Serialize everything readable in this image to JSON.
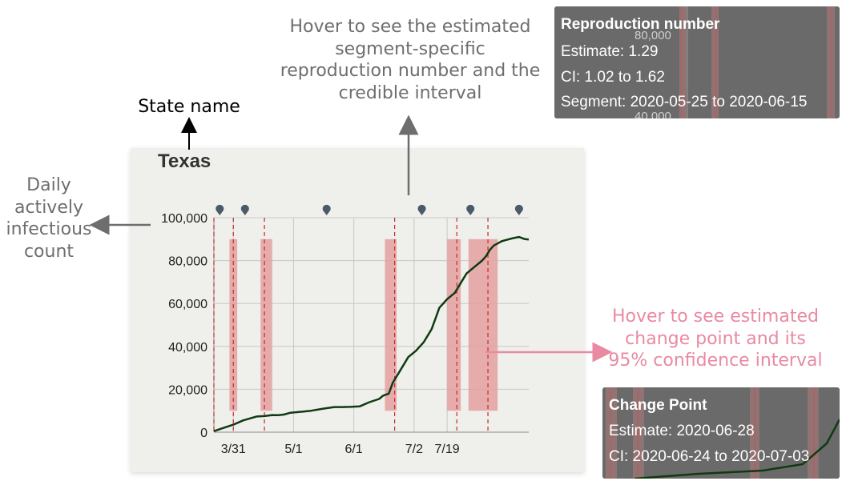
{
  "annotations": {
    "state_name": "State name",
    "daily_count": [
      "Daily",
      "actively",
      "infectious",
      "count"
    ],
    "hover_segment": [
      "Hover to see the estimated",
      "segment-specific",
      "reproduction number and the",
      "credible interval"
    ],
    "hover_change": [
      "Hover to see estimated",
      "change point and its",
      "95% confidence interval"
    ]
  },
  "colors": {
    "line": "#0f3a12",
    "band": "#e4a0a0",
    "dashed": "#c8282e",
    "marker": "#4a5a68",
    "arrow_grey": "#6e6e6e",
    "arrow_pink": "#e98aa2",
    "grid": "#c8c8c8"
  },
  "chart_data": {
    "type": "line",
    "title": "Texas",
    "xlabel": "",
    "ylabel": "",
    "ylim": [
      0,
      100000
    ],
    "x_ticks": [
      "3/31",
      "5/1",
      "6/1",
      "7/2",
      "7/19"
    ],
    "y_ticks": [
      "0",
      "20,000",
      "40,000",
      "60,000",
      "80,000",
      "100,000"
    ],
    "series": [
      {
        "x": [
          0,
          10,
          15,
          20,
          22,
          26,
          30,
          33,
          36,
          39,
          42,
          46,
          50,
          55,
          58,
          62,
          66,
          70,
          75,
          80,
          85,
          87,
          90,
          92,
          96,
          100,
          104,
          108,
          112,
          114,
          116,
          120,
          124,
          128,
          130,
          134,
          138,
          140,
          142,
          144,
          146,
          148,
          150,
          152,
          154,
          157,
          160,
          162
        ],
        "values": [
          500,
          3500,
          5500,
          6800,
          7300,
          7500,
          8000,
          7900,
          8200,
          9000,
          9300,
          9600,
          10000,
          10800,
          11200,
          11700,
          11700,
          11800,
          12000,
          14000,
          15500,
          17000,
          18000,
          23000,
          29000,
          35000,
          38000,
          42000,
          48000,
          53000,
          58000,
          62000,
          65000,
          71000,
          74000,
          77000,
          80000,
          82000,
          85000,
          87000,
          88000,
          89000,
          89500,
          90000,
          90500,
          91000,
          90000,
          89800
        ]
      }
    ],
    "change_points": [
      0,
      10,
      26,
      93,
      125,
      141
    ],
    "confidence_bands": [
      [
        8,
        12
      ],
      [
        24,
        30
      ],
      [
        88,
        94
      ],
      [
        120,
        127
      ],
      [
        131,
        146
      ]
    ],
    "segment_markers": [
      3,
      16,
      58,
      107,
      132,
      157
    ]
  },
  "tooltips": {
    "reproduction": {
      "title": "Reproduction number",
      "estimate": "Estimate: 1.29",
      "ci": "CI: 1.02 to 1.62",
      "segment": "Segment: 2020-05-25 to 2020-06-15",
      "bg_tick_a": "80,000",
      "bg_tick_b": "40,000"
    },
    "change_point": {
      "title": "Change Point",
      "estimate": "Estimate: 2020-06-28",
      "ci": "CI: 2020-06-24 to 2020-07-03"
    }
  }
}
